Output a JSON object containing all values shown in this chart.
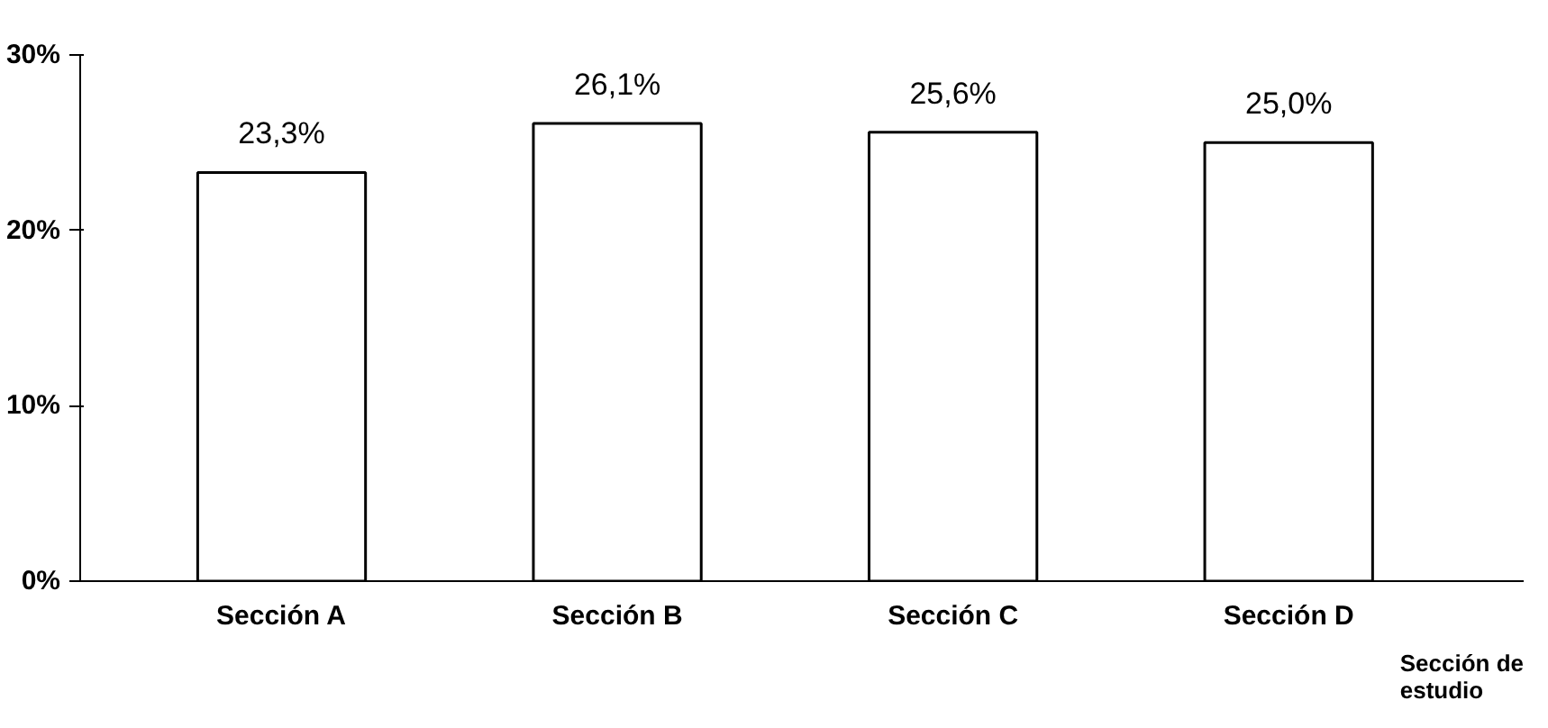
{
  "chart_data": {
    "type": "bar",
    "categories": [
      "Sección A",
      "Sección B",
      "Sección C",
      "Sección D"
    ],
    "values": [
      23.3,
      26.1,
      25.6,
      25.0
    ],
    "value_labels": [
      "23,3%",
      "26,1%",
      "25,6%",
      "25,0%"
    ],
    "color": "#ffffff",
    "xlabel": "Sección de estudio",
    "ylim": [
      0,
      30
    ],
    "yticks": [
      {
        "value": 0,
        "label": "0%"
      },
      {
        "value": 10,
        "label": "10%"
      },
      {
        "value": 20,
        "label": "20%"
      },
      {
        "value": 30,
        "label": "30%"
      }
    ],
    "grid": false
  }
}
